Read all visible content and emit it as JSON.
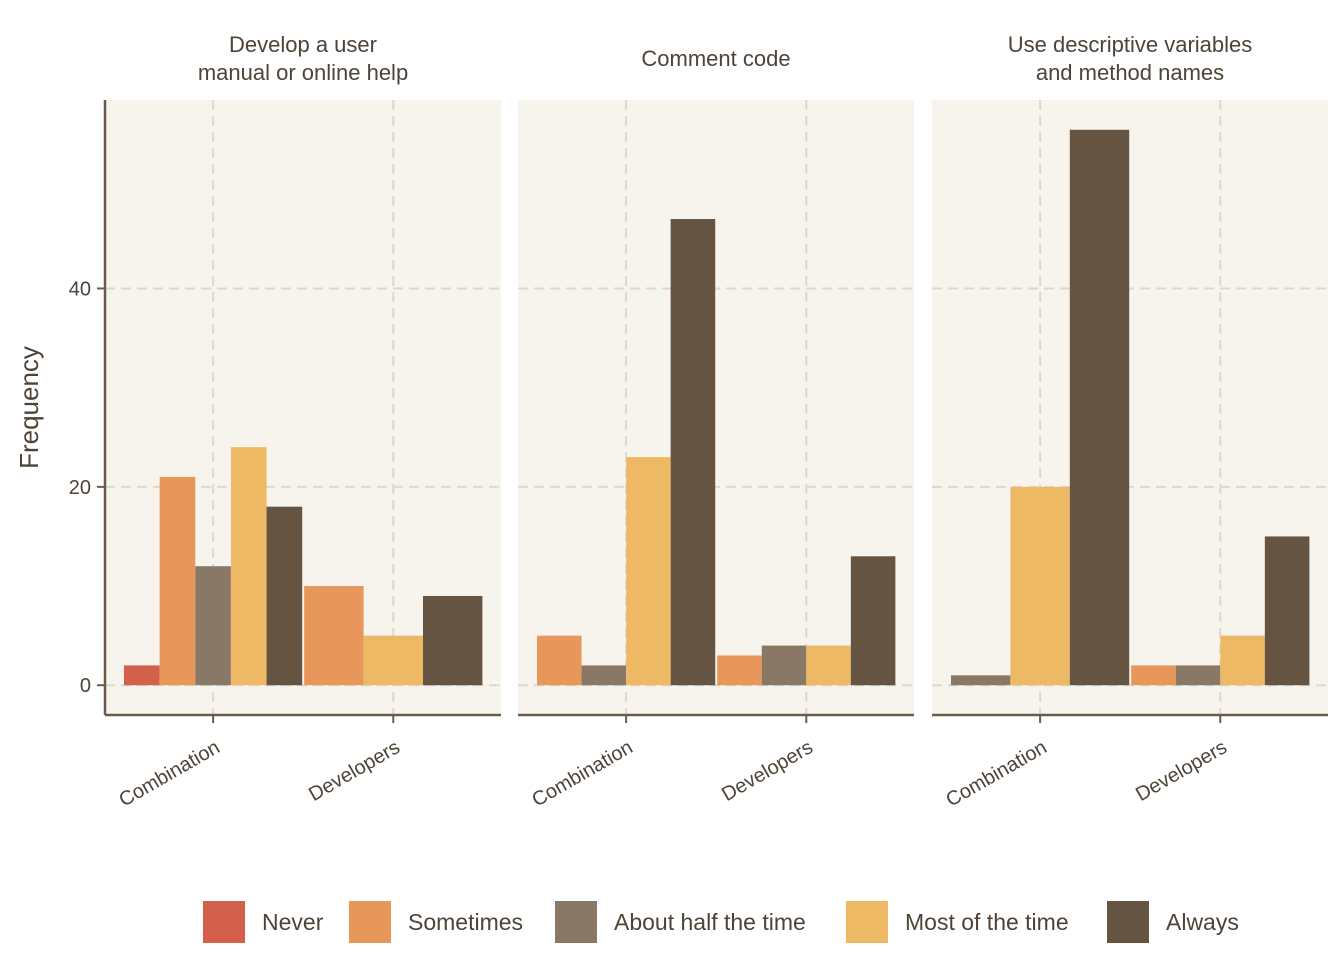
{
  "chart_data": {
    "type": "bar",
    "ylabel": "Frequency",
    "xlabel": "",
    "ylim": [
      -3,
      59
    ],
    "y_ticks": [
      0,
      20,
      40
    ],
    "grid": true,
    "legend_position": "bottom",
    "groups": [
      "Combination",
      "Developers"
    ],
    "categories": [
      "Never",
      "Sometimes",
      "About half the time",
      "Most of the time",
      "Always"
    ],
    "colors": {
      "Never": "#d2604a",
      "Sometimes": "#e8975b",
      "About half the time": "#8a7866",
      "Most of the time": "#eeb965",
      "Always": "#655441"
    },
    "panel_background": "#f7f4ee",
    "grid_color": "#ddd8cc",
    "axis_color": "#6b5a49",
    "facets": [
      {
        "title_lines": [
          "Develop a user",
          "manual or online help"
        ],
        "bars": {
          "Combination": {
            "Never": 2,
            "Sometimes": 21,
            "About half the time": 12,
            "Most of the time": 24,
            "Always": 18
          },
          "Developers": {
            "Sometimes": 10,
            "Most of the time": 5,
            "Always": 9
          }
        }
      },
      {
        "title_lines": [
          "Comment code"
        ],
        "bars": {
          "Combination": {
            "Sometimes": 5,
            "About half the time": 2,
            "Most of the time": 23,
            "Always": 47
          },
          "Developers": {
            "Sometimes": 3,
            "About half the time": 4,
            "Most of the time": 4,
            "Always": 13
          }
        }
      },
      {
        "title_lines": [
          "Use descriptive variables",
          "and method names"
        ],
        "bars": {
          "Combination": {
            "About half the time": 1,
            "Most of the time": 20,
            "Always": 56
          },
          "Developers": {
            "Sometimes": 2,
            "About half the time": 2,
            "Most of the time": 5,
            "Always": 15
          }
        }
      }
    ]
  }
}
